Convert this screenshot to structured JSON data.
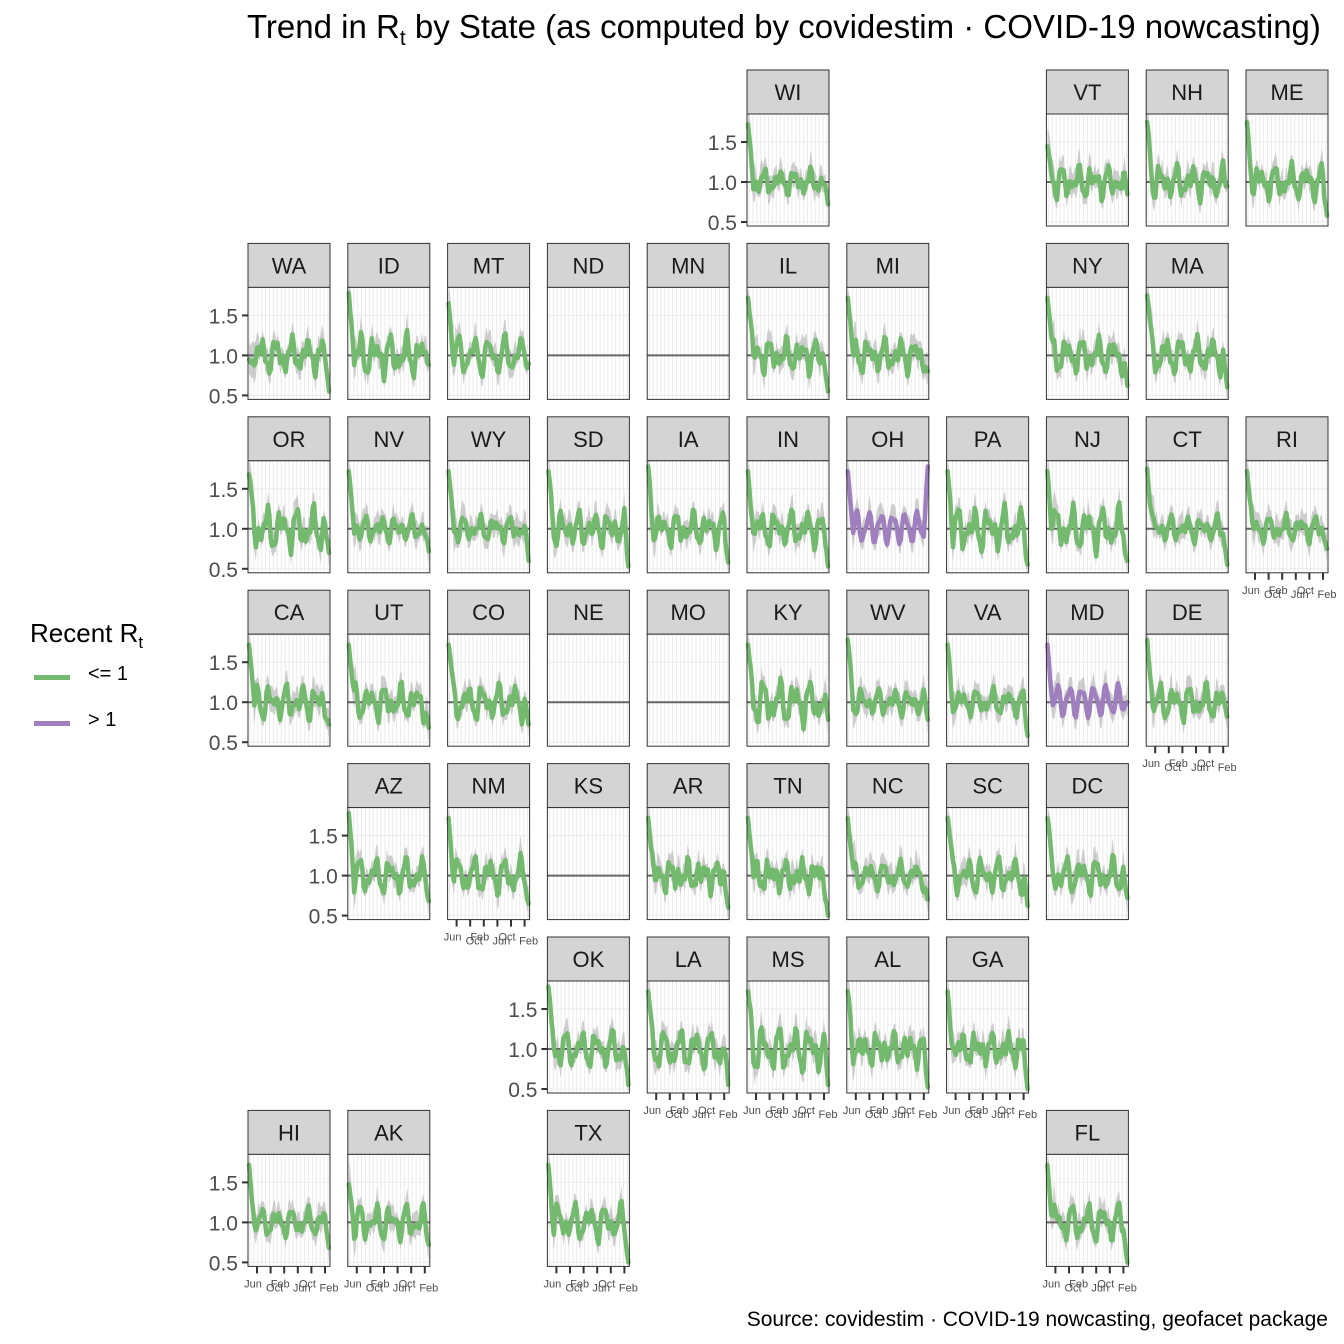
{
  "title": {
    "prefix": "Trend in R",
    "subscript": "t",
    "suffix": " by State (as computed by covidestim · COVID-19 nowcasting)"
  },
  "caption": "Source: covidestim · COVID-19 nowcasting, geofacet package",
  "legend": {
    "title_prefix": "Recent R",
    "title_subscript": "t",
    "items": [
      {
        "label": "<= 1",
        "color": "#73B96E"
      },
      {
        "label": "> 1",
        "color": "#A07FBF"
      }
    ]
  },
  "chart_data": {
    "type": "line",
    "layout": "small-multiples-geofacet",
    "y_ticks": [
      0.5,
      1.0,
      1.5
    ],
    "ylim": [
      0.45,
      1.85
    ],
    "reference_line": 1.0,
    "x_ticks": [
      "Jun",
      "Oct",
      "Feb",
      "Jun",
      "Oct",
      "Feb"
    ],
    "colors": {
      "le1": "#73B96E",
      "gt1": "#A07FBF",
      "band": "#BDBDBD",
      "strip": "#D4D4D4"
    },
    "states": [
      {
        "abbr": "WI",
        "row": 0,
        "col": 5,
        "status": "le1",
        "start": 1.72,
        "end": 0.72
      },
      {
        "abbr": "VT",
        "row": 0,
        "col": 8,
        "status": "le1",
        "start": 1.45,
        "end": 0.85
      },
      {
        "abbr": "NH",
        "row": 0,
        "col": 9,
        "status": "le1",
        "start": 1.75,
        "end": 0.95
      },
      {
        "abbr": "ME",
        "row": 0,
        "col": 10,
        "status": "le1",
        "start": 1.75,
        "end": 0.58
      },
      {
        "abbr": "WA",
        "row": 1,
        "col": 0,
        "status": "le1",
        "start": 0.95,
        "end": 0.55
      },
      {
        "abbr": "ID",
        "row": 1,
        "col": 1,
        "status": "le1",
        "start": 1.78,
        "end": 0.88
      },
      {
        "abbr": "MT",
        "row": 1,
        "col": 2,
        "status": "le1",
        "start": 1.65,
        "end": 0.9
      },
      {
        "abbr": "ND",
        "row": 1,
        "col": 3,
        "status": "none"
      },
      {
        "abbr": "MN",
        "row": 1,
        "col": 4,
        "status": "none"
      },
      {
        "abbr": "IL",
        "row": 1,
        "col": 5,
        "status": "le1",
        "start": 1.72,
        "end": 0.55
      },
      {
        "abbr": "MI",
        "row": 1,
        "col": 6,
        "status": "le1",
        "start": 1.72,
        "end": 0.8
      },
      {
        "abbr": "NY",
        "row": 1,
        "col": 8,
        "status": "le1",
        "start": 1.72,
        "end": 0.62
      },
      {
        "abbr": "MA",
        "row": 1,
        "col": 9,
        "status": "le1",
        "start": 1.75,
        "end": 0.6
      },
      {
        "abbr": "OR",
        "row": 2,
        "col": 0,
        "status": "le1",
        "start": 1.68,
        "end": 0.7
      },
      {
        "abbr": "NV",
        "row": 2,
        "col": 1,
        "status": "le1",
        "start": 1.72,
        "end": 0.72
      },
      {
        "abbr": "WY",
        "row": 2,
        "col": 2,
        "status": "le1",
        "start": 1.72,
        "end": 0.6
      },
      {
        "abbr": "SD",
        "row": 2,
        "col": 3,
        "status": "le1",
        "start": 1.72,
        "end": 0.53
      },
      {
        "abbr": "IA",
        "row": 2,
        "col": 4,
        "status": "le1",
        "start": 1.78,
        "end": 0.58
      },
      {
        "abbr": "IN",
        "row": 2,
        "col": 5,
        "status": "le1",
        "start": 1.72,
        "end": 0.53
      },
      {
        "abbr": "OH",
        "row": 2,
        "col": 6,
        "status": "gt1",
        "start": 1.72,
        "end": 1.78
      },
      {
        "abbr": "PA",
        "row": 2,
        "col": 7,
        "status": "le1",
        "start": 1.72,
        "end": 0.55
      },
      {
        "abbr": "NJ",
        "row": 2,
        "col": 8,
        "status": "le1",
        "start": 1.72,
        "end": 0.6
      },
      {
        "abbr": "CT",
        "row": 2,
        "col": 9,
        "status": "le1",
        "start": 1.75,
        "end": 0.55
      },
      {
        "abbr": "RI",
        "row": 2,
        "col": 10,
        "status": "le1",
        "start": 1.72,
        "end": 0.75
      },
      {
        "abbr": "CA",
        "row": 3,
        "col": 0,
        "status": "le1",
        "start": 1.72,
        "end": 0.72
      },
      {
        "abbr": "UT",
        "row": 3,
        "col": 1,
        "status": "le1",
        "start": 1.72,
        "end": 0.68
      },
      {
        "abbr": "CO",
        "row": 3,
        "col": 2,
        "status": "le1",
        "start": 1.72,
        "end": 0.72
      },
      {
        "abbr": "NE",
        "row": 3,
        "col": 3,
        "status": "none"
      },
      {
        "abbr": "MO",
        "row": 3,
        "col": 4,
        "status": "none"
      },
      {
        "abbr": "KY",
        "row": 3,
        "col": 5,
        "status": "le1",
        "start": 1.72,
        "end": 0.78
      },
      {
        "abbr": "WV",
        "row": 3,
        "col": 6,
        "status": "le1",
        "start": 1.78,
        "end": 0.78
      },
      {
        "abbr": "VA",
        "row": 3,
        "col": 7,
        "status": "le1",
        "start": 1.72,
        "end": 0.58
      },
      {
        "abbr": "MD",
        "row": 3,
        "col": 8,
        "status": "gt1",
        "start": 1.72,
        "end": 1.0
      },
      {
        "abbr": "DE",
        "row": 3,
        "col": 9,
        "status": "le1",
        "start": 1.78,
        "end": 0.82
      },
      {
        "abbr": "AZ",
        "row": 4,
        "col": 1,
        "status": "le1",
        "start": 1.78,
        "end": 0.68
      },
      {
        "abbr": "NM",
        "row": 4,
        "col": 2,
        "status": "le1",
        "start": 1.72,
        "end": 0.65
      },
      {
        "abbr": "KS",
        "row": 4,
        "col": 3,
        "status": "none"
      },
      {
        "abbr": "AR",
        "row": 4,
        "col": 4,
        "status": "le1",
        "start": 1.72,
        "end": 0.6
      },
      {
        "abbr": "TN",
        "row": 4,
        "col": 5,
        "status": "le1",
        "start": 1.72,
        "end": 0.5
      },
      {
        "abbr": "NC",
        "row": 4,
        "col": 6,
        "status": "le1",
        "start": 1.72,
        "end": 0.7
      },
      {
        "abbr": "SC",
        "row": 4,
        "col": 7,
        "status": "le1",
        "start": 1.72,
        "end": 0.62
      },
      {
        "abbr": "DC",
        "row": 4,
        "col": 8,
        "status": "le1",
        "start": 1.72,
        "end": 0.72
      },
      {
        "abbr": "OK",
        "row": 5,
        "col": 3,
        "status": "le1",
        "start": 1.78,
        "end": 0.55
      },
      {
        "abbr": "LA",
        "row": 5,
        "col": 4,
        "status": "le1",
        "start": 1.72,
        "end": 0.55
      },
      {
        "abbr": "MS",
        "row": 5,
        "col": 5,
        "status": "le1",
        "start": 1.72,
        "end": 0.55
      },
      {
        "abbr": "AL",
        "row": 5,
        "col": 6,
        "status": "le1",
        "start": 1.72,
        "end": 0.52
      },
      {
        "abbr": "GA",
        "row": 5,
        "col": 7,
        "status": "le1",
        "start": 1.72,
        "end": 0.5
      },
      {
        "abbr": "HI",
        "row": 6,
        "col": 0,
        "status": "le1",
        "start": 1.72,
        "end": 0.68
      },
      {
        "abbr": "AK",
        "row": 6,
        "col": 1,
        "status": "le1",
        "start": 1.48,
        "end": 0.72
      },
      {
        "abbr": "TX",
        "row": 6,
        "col": 3,
        "status": "le1",
        "start": 1.72,
        "end": 0.5
      },
      {
        "abbr": "FL",
        "row": 6,
        "col": 8,
        "status": "le1",
        "start": 1.72,
        "end": 0.5
      }
    ]
  }
}
